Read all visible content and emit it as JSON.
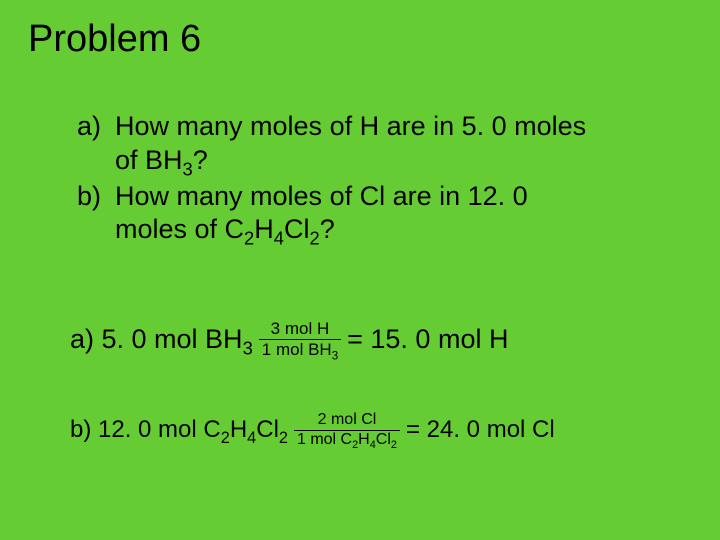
{
  "background_color": "#66cc33",
  "text_color": "#000000",
  "title": {
    "text": "Problem 6",
    "fontsize": 38
  },
  "questions": {
    "fontsize": 27,
    "items": [
      {
        "marker": "a)",
        "line1": "How many moles of H are in 5. 0 moles",
        "line2_prefix": "of BH",
        "line2_sub": "3",
        "line2_suffix": "?"
      },
      {
        "marker": "b)",
        "line1": "How many moles of Cl are in 12. 0",
        "line2_prefix": "moles of C",
        "line2_mid1_sub": "2",
        "line2_mid2": "H",
        "line2_mid2_sub": "4",
        "line2_mid3": "Cl",
        "line2_mid3_sub": "2",
        "line2_suffix": "?"
      }
    ]
  },
  "answers": {
    "a": {
      "lead_prefix": "a) 5. 0 mol BH",
      "lead_sub": "3",
      "frac_num": "3 mol H",
      "frac_den_prefix": "1 mol BH",
      "frac_den_sub": "3",
      "result": "= 15. 0 mol H",
      "fontsize": 27,
      "frac_fontsize": 17
    },
    "b": {
      "lead_prefix": "b)  12. 0 mol C",
      "lead_s1": "2",
      "lead_m1": "H",
      "lead_s2": "4",
      "lead_m2": "Cl",
      "lead_s3": "2",
      "frac_num": "2 mol Cl",
      "frac_den_prefix": "1 mol C",
      "den_s1": "2",
      "den_m1": "H",
      "den_s2": "4",
      "den_m2": "Cl",
      "den_s3": "2",
      "result": "= 24. 0 mol Cl",
      "fontsize": 24,
      "frac_fontsize": 16
    }
  }
}
